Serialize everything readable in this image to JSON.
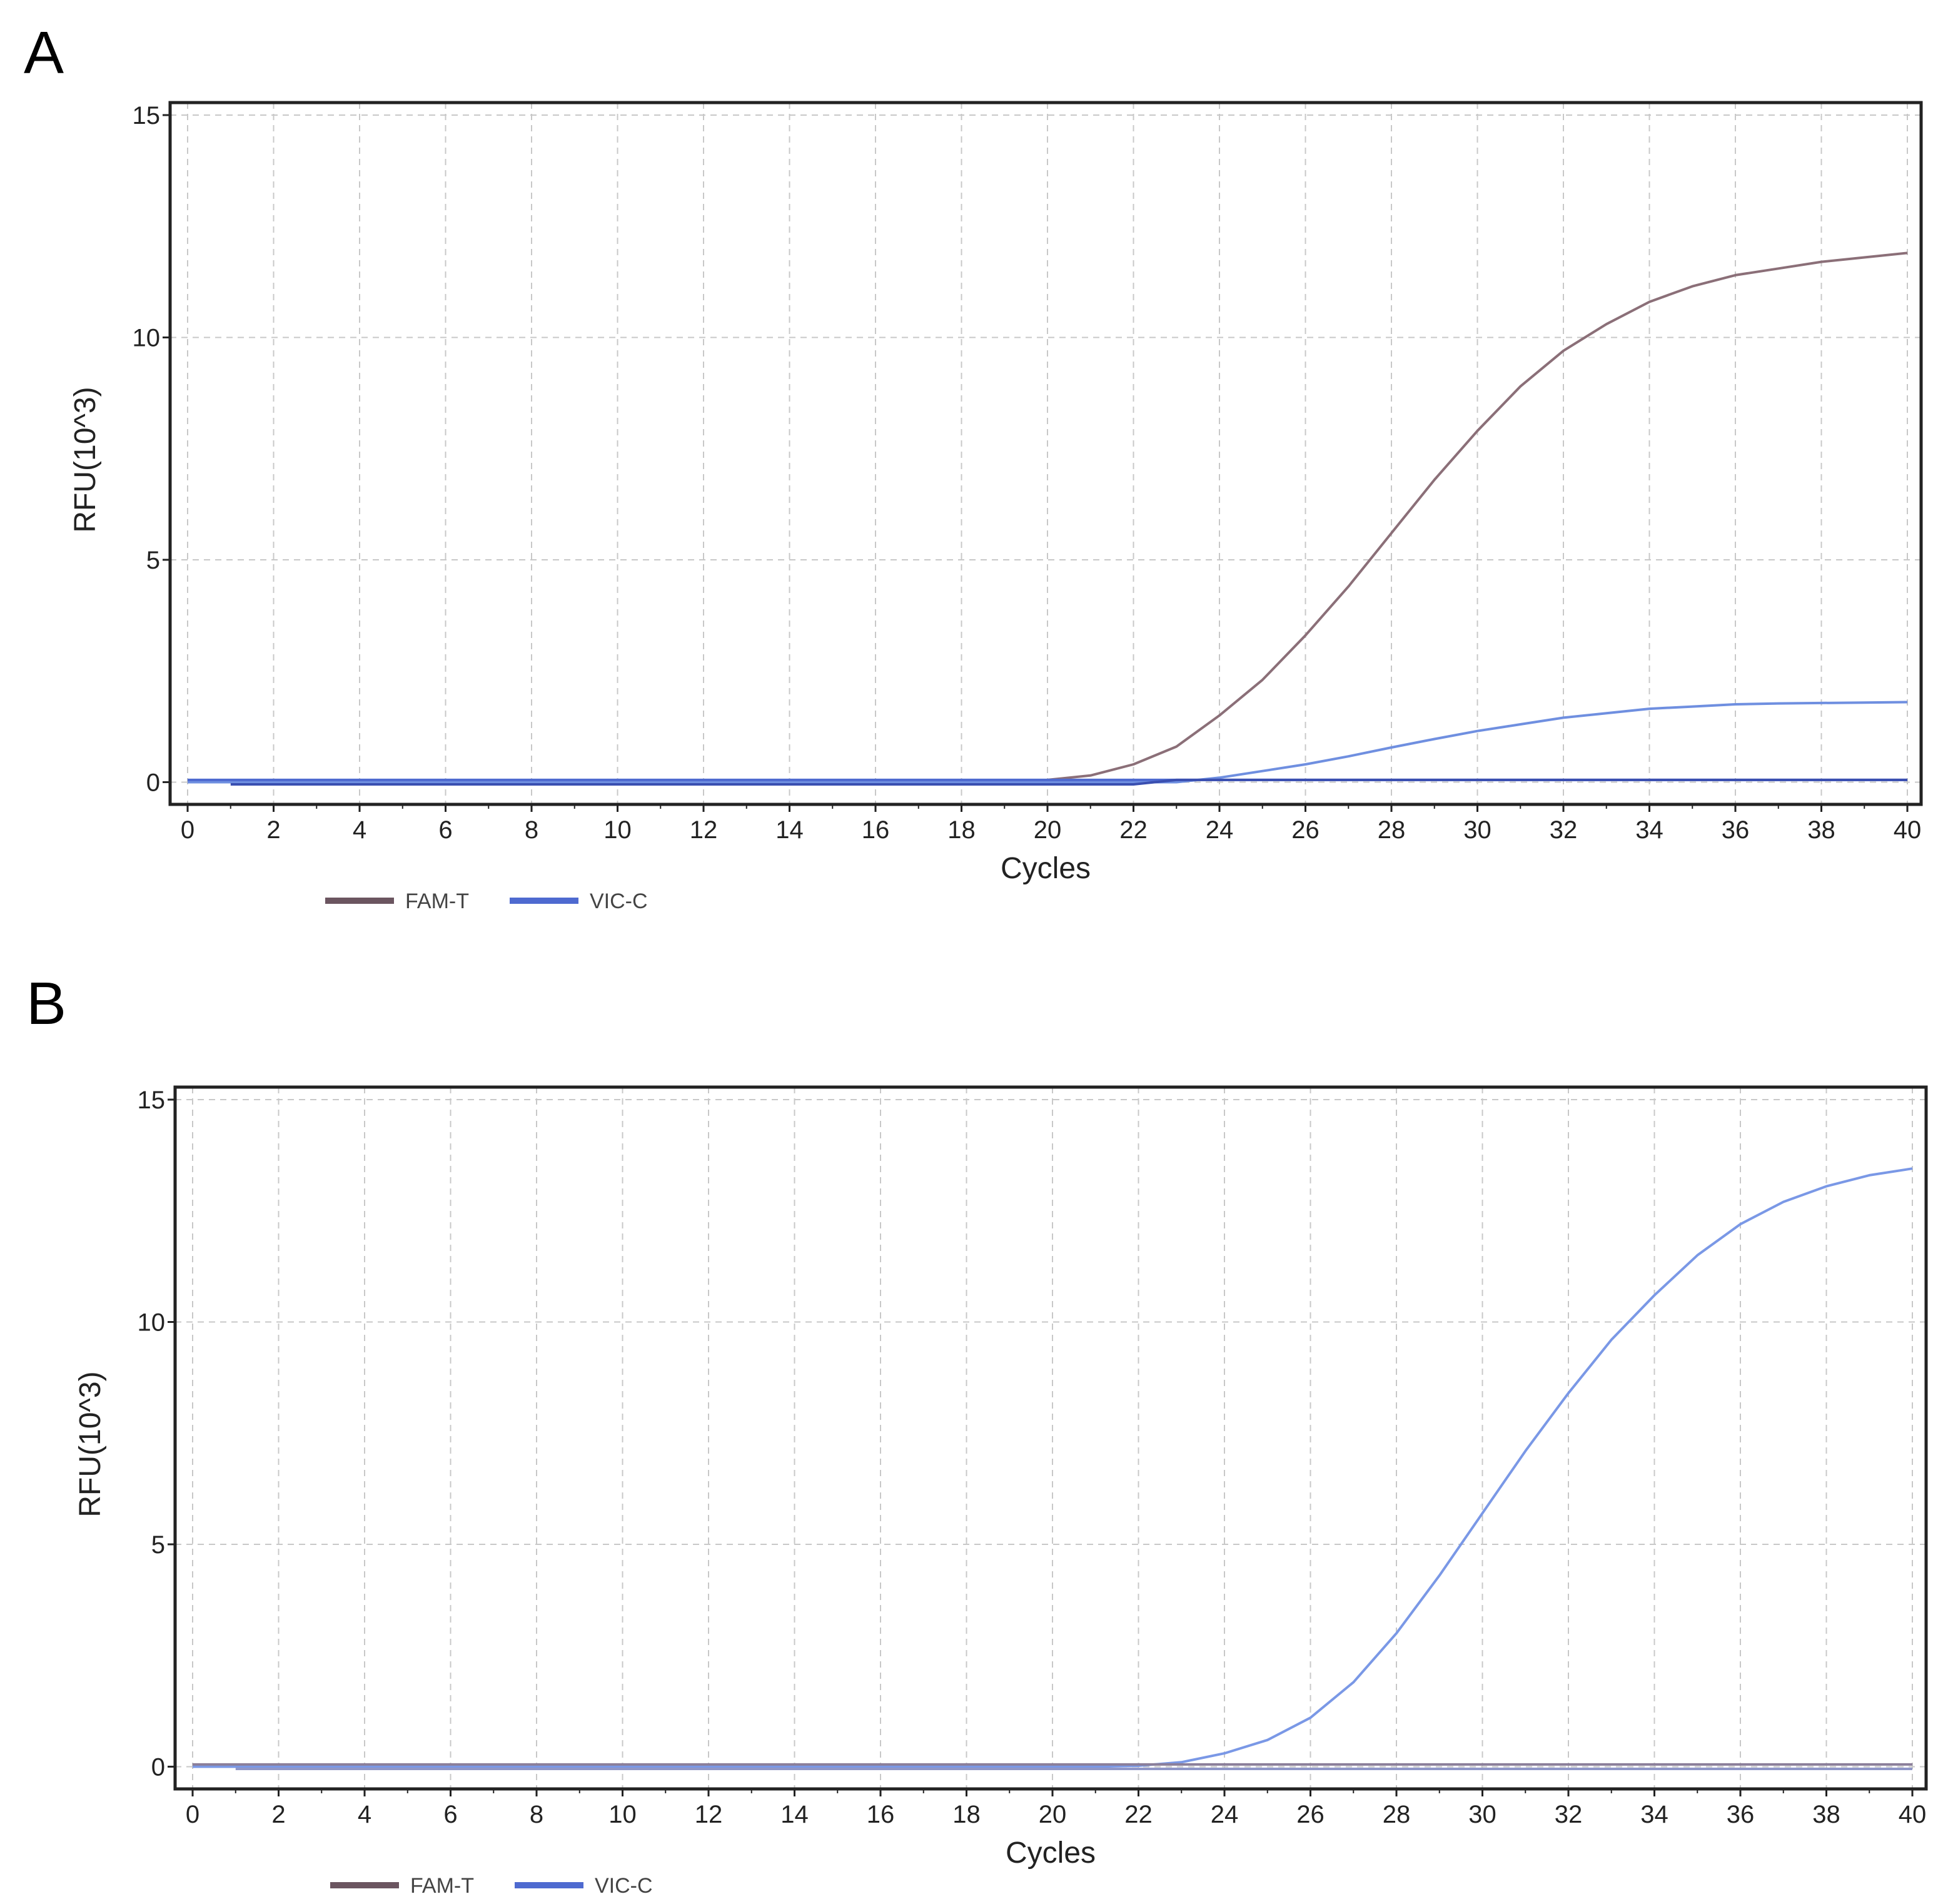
{
  "panels": [
    {
      "letter": "A",
      "chart_data": {
        "type": "line",
        "xlabel": "Cycles",
        "ylabel": "RFU(10^3)",
        "xlim": [
          0,
          40
        ],
        "ylim": [
          -0.5,
          15
        ],
        "xticks": [
          0,
          2,
          4,
          6,
          8,
          10,
          12,
          14,
          16,
          18,
          20,
          22,
          24,
          26,
          28,
          30,
          32,
          34,
          36,
          38,
          40
        ],
        "yticks": [
          0,
          5,
          10,
          15
        ],
        "grid": true,
        "legend_position": "bottom-left",
        "x": [
          0,
          1,
          2,
          3,
          4,
          5,
          6,
          7,
          8,
          9,
          10,
          11,
          12,
          13,
          14,
          15,
          16,
          17,
          18,
          19,
          20,
          21,
          22,
          23,
          24,
          25,
          26,
          27,
          28,
          29,
          30,
          31,
          32,
          33,
          34,
          35,
          36,
          37,
          38,
          39,
          40
        ],
        "series": [
          {
            "name": "FAM-T",
            "color": "#8b6f78",
            "values": [
              0,
              0,
              0,
              0,
              0,
              0,
              0,
              0,
              0,
              0,
              0,
              0,
              0,
              0,
              0,
              0,
              0,
              0,
              0,
              0.02,
              0.05,
              0.15,
              0.4,
              0.8,
              1.5,
              2.3,
              3.3,
              4.4,
              5.6,
              6.8,
              7.9,
              8.9,
              9.7,
              10.3,
              10.8,
              11.15,
              11.4,
              11.55,
              11.7,
              11.8,
              11.9
            ]
          },
          {
            "name": "VIC-C",
            "color": "#6f8fe0",
            "values": [
              0,
              0,
              0,
              0,
              0,
              0,
              0,
              0,
              0,
              0,
              0,
              0,
              0,
              0,
              0,
              0,
              0,
              0,
              0,
              0,
              0,
              0,
              0,
              0,
              0.1,
              0.25,
              0.4,
              0.58,
              0.78,
              0.97,
              1.15,
              1.3,
              1.45,
              1.55,
              1.65,
              1.7,
              1.75,
              1.77,
              1.78,
              1.79,
              1.8
            ]
          },
          {
            "name": "",
            "color": "#4e6ad0",
            "values": [
              0.05,
              0.05,
              0.05,
              0.05,
              0.05,
              0.05,
              0.05,
              0.05,
              0.05,
              0.05,
              0.05,
              0.05,
              0.05,
              0.05,
              0.05,
              0.05,
              0.05,
              0.05,
              0.05,
              0.05,
              0.05,
              0.05,
              0.05,
              0.05,
              0.05,
              0.05,
              0.05,
              0.05,
              0.05,
              0.05,
              0.05,
              0.05,
              0.05,
              0.05,
              0.05,
              0.05,
              0.05,
              0.05,
              0.05,
              0.05,
              0.05
            ]
          },
          {
            "name": "",
            "color": "#3a4fb0",
            "values": [
              null,
              -0.05,
              -0.05,
              -0.05,
              -0.05,
              -0.05,
              -0.05,
              -0.05,
              -0.05,
              -0.05,
              -0.05,
              -0.05,
              -0.05,
              -0.05,
              -0.05,
              -0.05,
              -0.05,
              -0.05,
              -0.05,
              -0.05,
              -0.05,
              -0.05,
              -0.05,
              0.05,
              0.05,
              0.05,
              0.05,
              0.05,
              0.05,
              0.05,
              0.05,
              0.05,
              0.05,
              0.05,
              0.05,
              0.05,
              0.05,
              0.05,
              0.05,
              0.05,
              0.05
            ]
          }
        ],
        "legend": [
          {
            "label": "FAM-T",
            "color": "#6b5560"
          },
          {
            "label": "VIC-C",
            "color": "#4e6ad0"
          }
        ]
      }
    },
    {
      "letter": "B",
      "chart_data": {
        "type": "line",
        "xlabel": "Cycles",
        "ylabel": "RFU(10^3)",
        "xlim": [
          0,
          40
        ],
        "ylim": [
          -0.5,
          15
        ],
        "xticks": [
          0,
          2,
          4,
          6,
          8,
          10,
          12,
          14,
          16,
          18,
          20,
          22,
          24,
          26,
          28,
          30,
          32,
          34,
          36,
          38,
          40
        ],
        "yticks": [
          0,
          5,
          10,
          15
        ],
        "grid": true,
        "legend_position": "bottom-left",
        "x": [
          0,
          1,
          2,
          3,
          4,
          5,
          6,
          7,
          8,
          9,
          10,
          11,
          12,
          13,
          14,
          15,
          16,
          17,
          18,
          19,
          20,
          21,
          22,
          23,
          24,
          25,
          26,
          27,
          28,
          29,
          30,
          31,
          32,
          33,
          34,
          35,
          36,
          37,
          38,
          39,
          40
        ],
        "series": [
          {
            "name": "VIC-C",
            "color": "#7a98e6",
            "values": [
              0,
              0,
              0,
              0,
              0,
              0,
              0,
              0,
              0,
              0,
              0,
              0,
              0,
              0,
              0,
              0,
              0,
              0,
              0,
              0,
              0,
              0,
              0.02,
              0.1,
              0.3,
              0.6,
              1.1,
              1.9,
              3.0,
              4.3,
              5.7,
              7.1,
              8.4,
              9.6,
              10.6,
              11.5,
              12.2,
              12.7,
              13.05,
              13.3,
              13.45
            ]
          },
          {
            "name": "",
            "color": "#8b7f9a",
            "values": [
              0.05,
              0.05,
              0.05,
              0.05,
              0.05,
              0.05,
              0.05,
              0.05,
              0.05,
              0.05,
              0.05,
              0.05,
              0.05,
              0.05,
              0.05,
              0.05,
              0.05,
              0.05,
              0.05,
              0.05,
              0.05,
              0.05,
              0.05,
              0.05,
              0.05,
              0.05,
              0.05,
              0.05,
              0.05,
              0.05,
              0.05,
              0.05,
              0.05,
              0.05,
              0.05,
              0.05,
              0.05,
              0.05,
              0.05,
              0.05,
              0.05
            ]
          },
          {
            "name": "",
            "color": "#8f96c8",
            "values": [
              null,
              -0.05,
              -0.05,
              -0.05,
              -0.05,
              -0.05,
              -0.05,
              -0.05,
              -0.05,
              -0.05,
              -0.05,
              -0.05,
              -0.05,
              -0.05,
              -0.05,
              -0.05,
              -0.05,
              -0.05,
              -0.05,
              -0.05,
              -0.05,
              -0.05,
              -0.05,
              -0.05,
              -0.05,
              -0.05,
              -0.05,
              -0.05,
              -0.05,
              -0.05,
              -0.05,
              -0.05,
              -0.05,
              -0.05,
              -0.05,
              -0.05,
              -0.05,
              -0.05,
              -0.05,
              -0.05,
              -0.05
            ]
          }
        ],
        "legend": [
          {
            "label": "FAM-T",
            "color": "#6b5560"
          },
          {
            "label": "VIC-C",
            "color": "#4e6ad0"
          }
        ]
      }
    }
  ]
}
